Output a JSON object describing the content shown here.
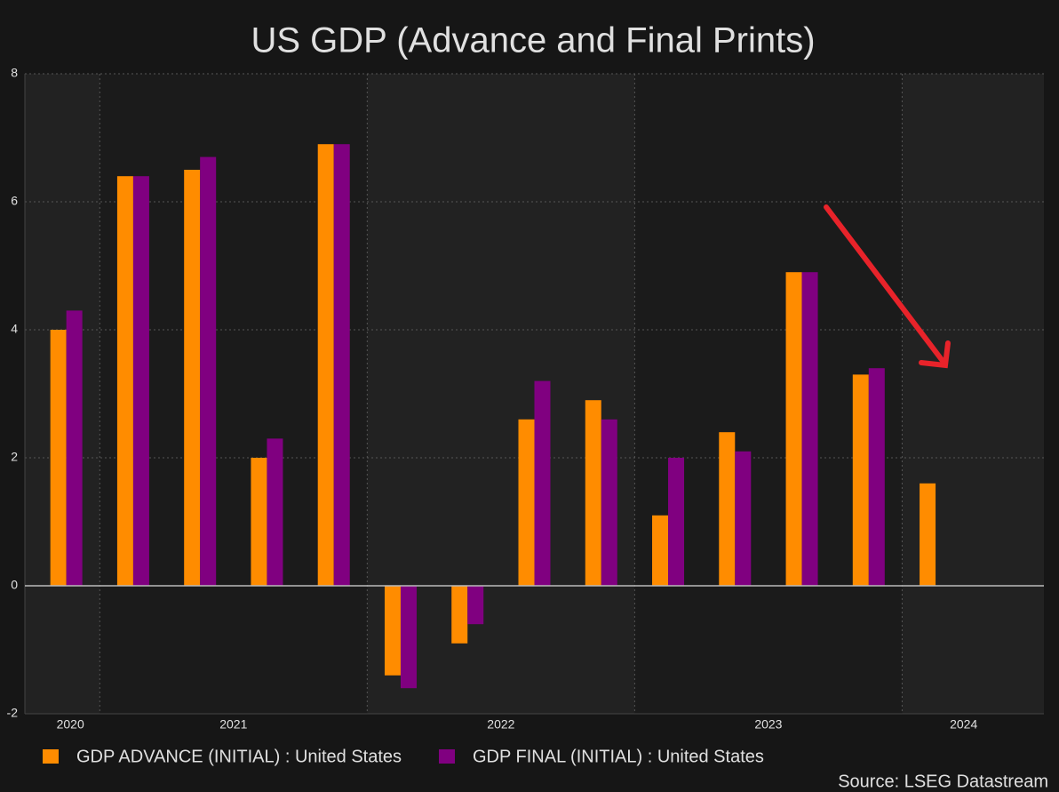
{
  "chart_data": {
    "type": "bar",
    "title": "US GDP (Advance and Final Prints)",
    "x": [
      2020.875,
      2021.125,
      2021.375,
      2021.625,
      2021.875,
      2022.125,
      2022.375,
      2022.625,
      2022.875,
      2023.125,
      2023.375,
      2023.625,
      2023.875,
      2024.125
    ],
    "series": [
      {
        "name": "GDP ADVANCE (INITIAL) : United States",
        "color": "#ff8c00",
        "values": [
          4.0,
          6.4,
          6.5,
          2.0,
          6.9,
          -1.4,
          -0.9,
          2.6,
          2.9,
          1.1,
          2.4,
          4.9,
          3.3,
          1.6
        ]
      },
      {
        "name": "GDP FINAL (INITIAL) : United States",
        "color": "#800080",
        "values": [
          4.3,
          6.4,
          6.7,
          2.3,
          6.9,
          -1.6,
          -0.6,
          3.2,
          2.6,
          2.0,
          2.1,
          4.9,
          3.4,
          null
        ]
      }
    ],
    "xlim": [
      2020.72,
      2024.53
    ],
    "xticks": [
      {
        "value": 2020.89,
        "label": "2020"
      },
      {
        "value": 2021.5,
        "label": "2021"
      },
      {
        "value": 2022.5,
        "label": "2022"
      },
      {
        "value": 2023.5,
        "label": "2023"
      },
      {
        "value": 2024.23,
        "label": "2024"
      }
    ],
    "xgrid_lines": [
      2021,
      2022,
      2023,
      2024
    ],
    "ylim": [
      -2,
      8
    ],
    "yticks": [
      -2,
      0,
      2,
      4,
      6,
      8
    ],
    "grid": true,
    "legend": "bottom",
    "source": "Source: LSEG Datastream"
  }
}
